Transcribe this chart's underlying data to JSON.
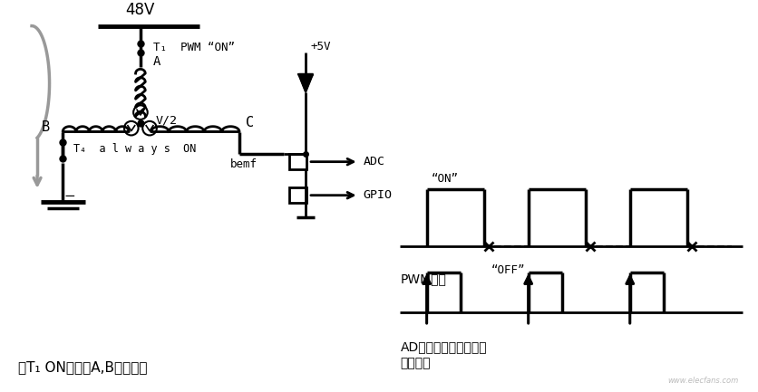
{
  "bg_color": "#ffffff",
  "line_color": "#000000",
  "gray_color": "#999999",
  "title_bottom": "在T₁ ON时流过A,B相的电流",
  "pwm_label": "PWM信号",
  "adc_label": "AD转换在上升沿被触发",
  "trigger_label": "触发信号",
  "label_48V": "48V",
  "label_T1": "T₁  PWM “ON”",
  "label_A": "A",
  "label_V2": "V/2",
  "label_B": "B",
  "label_C": "C",
  "label_bemf": "bemf",
  "label_T4": "T₄  a l w a y s  ON",
  "label_5V": "+5V",
  "label_ADC": "ADC",
  "label_GPIO": "GPIO",
  "label_ON": "“ON”",
  "label_OFF": "“OFF”",
  "label_minus": "−",
  "watermark": "www.elecfans.com"
}
